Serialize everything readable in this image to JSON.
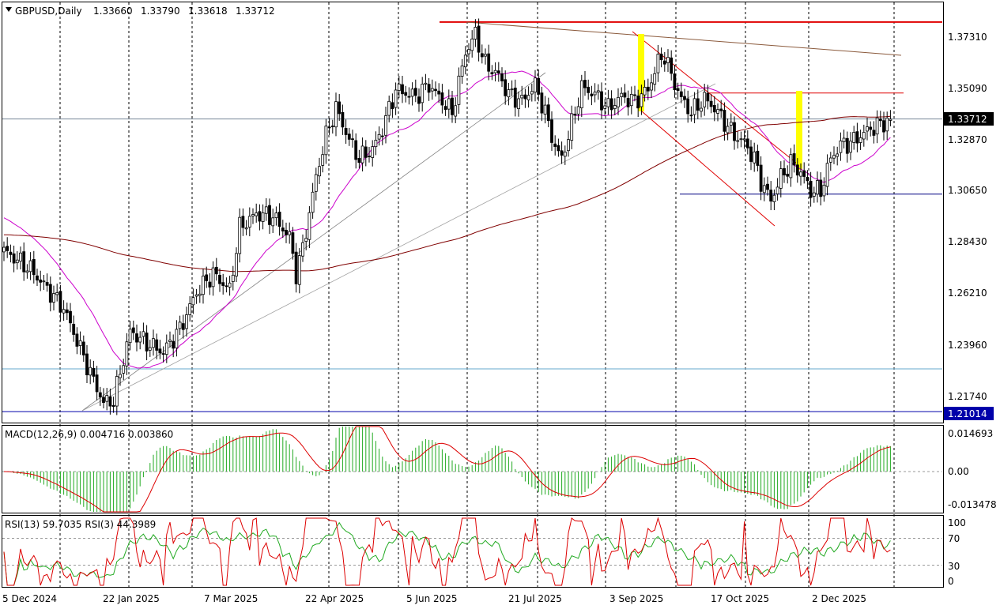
{
  "header": {
    "symbol": "GBPUSD,Daily",
    "open": "1.33660",
    "high": "1.33790",
    "low": "1.33618",
    "close": "1.33712"
  },
  "macd_header": "MACD(12,26,9) 0.004716 0.003860",
  "rsi_header": "RSI(13) 59.7035  RSI(3) 44.3989",
  "price_axis": {
    "ticks": [
      "1.37310",
      "1.35090",
      "1.32870",
      "1.30650",
      "1.28430",
      "1.26210",
      "1.23960",
      "1.21740"
    ],
    "current_price": "1.33712",
    "marked_low": "1.21014"
  },
  "macd_axis": {
    "ticks": [
      "0.014693",
      "0.00",
      "-0.013478"
    ]
  },
  "rsi_axis": {
    "ticks": [
      "100",
      "70",
      "30",
      "0"
    ]
  },
  "date_axis": [
    "5 Dec 2024",
    "22 Jan 2025",
    "7 Mar 2025",
    "22 Apr 2025",
    "5 Jun 2025",
    "21 Jul 2025",
    "3 Sep 2025",
    "17 Oct 2025",
    "2 Dec 2025"
  ],
  "colors": {
    "bull": "#ffffff",
    "bear": "#000000",
    "ma_short": "#cc00cc",
    "ma_long": "#800000",
    "resistance": "#e00000",
    "macd_hist": "#22aa22",
    "macd_signal": "#dd0000",
    "rsi13": "#22aa22",
    "rsi3": "#dd0000",
    "highlight": "#ffff00"
  },
  "chart_data": {
    "type": "candlestick",
    "instrument": "GBPUSD",
    "timeframe": "Daily",
    "last_candle": {
      "open": 1.3366,
      "high": 1.3379,
      "low": 1.33618,
      "close": 1.33712
    },
    "y_range": [
      1.205,
      1.382
    ],
    "key_levels": [
      1.3793,
      1.3485,
      1.3372,
      1.3046,
      1.2287,
      1.21014
    ],
    "close_path": [
      [
        0,
        1.28
      ],
      [
        8,
        1.272
      ],
      [
        18,
        1.255
      ],
      [
        26,
        1.227
      ],
      [
        30,
        1.214
      ],
      [
        33,
        1.215
      ],
      [
        38,
        1.245
      ],
      [
        43,
        1.24
      ],
      [
        48,
        1.236
      ],
      [
        53,
        1.246
      ],
      [
        58,
        1.262
      ],
      [
        63,
        1.27
      ],
      [
        68,
        1.263
      ],
      [
        71,
        1.29
      ],
      [
        76,
        1.296
      ],
      [
        81,
        1.295
      ],
      [
        86,
        1.286
      ],
      [
        88,
        1.27
      ],
      [
        90,
        1.281
      ],
      [
        94,
        1.312
      ],
      [
        97,
        1.33
      ],
      [
        100,
        1.342
      ],
      [
        104,
        1.328
      ],
      [
        107,
        1.32
      ],
      [
        111,
        1.324
      ],
      [
        114,
        1.333
      ],
      [
        118,
        1.35
      ],
      [
        124,
        1.347
      ],
      [
        128,
        1.352
      ],
      [
        132,
        1.345
      ],
      [
        135,
        1.34
      ],
      [
        139,
        1.366
      ],
      [
        142,
        1.374
      ],
      [
        145,
        1.361
      ],
      [
        149,
        1.356
      ],
      [
        152,
        1.348
      ],
      [
        156,
        1.345
      ],
      [
        160,
        1.352
      ],
      [
        163,
        1.34
      ],
      [
        166,
        1.325
      ],
      [
        168,
        1.32
      ],
      [
        171,
        1.335
      ],
      [
        174,
        1.351
      ],
      [
        178,
        1.348
      ],
      [
        182,
        1.342
      ],
      [
        186,
        1.347
      ],
      [
        190,
        1.345
      ],
      [
        194,
        1.35
      ],
      [
        197,
        1.362
      ],
      [
        199,
        1.365
      ],
      [
        201,
        1.356
      ],
      [
        204,
        1.346
      ],
      [
        207,
        1.34
      ],
      [
        211,
        1.346
      ],
      [
        214,
        1.342
      ],
      [
        217,
        1.336
      ],
      [
        220,
        1.33
      ],
      [
        223,
        1.327
      ],
      [
        226,
        1.32
      ],
      [
        228,
        1.31
      ],
      [
        231,
        1.302
      ],
      [
        234,
        1.312
      ],
      [
        237,
        1.318
      ],
      [
        240,
        1.314
      ],
      [
        243,
        1.306
      ],
      [
        246,
        1.306
      ],
      [
        249,
        1.32
      ],
      [
        252,
        1.326
      ],
      [
        255,
        1.327
      ],
      [
        258,
        1.33
      ],
      [
        261,
        1.333
      ],
      [
        264,
        1.335
      ],
      [
        267,
        1.337
      ]
    ]
  }
}
